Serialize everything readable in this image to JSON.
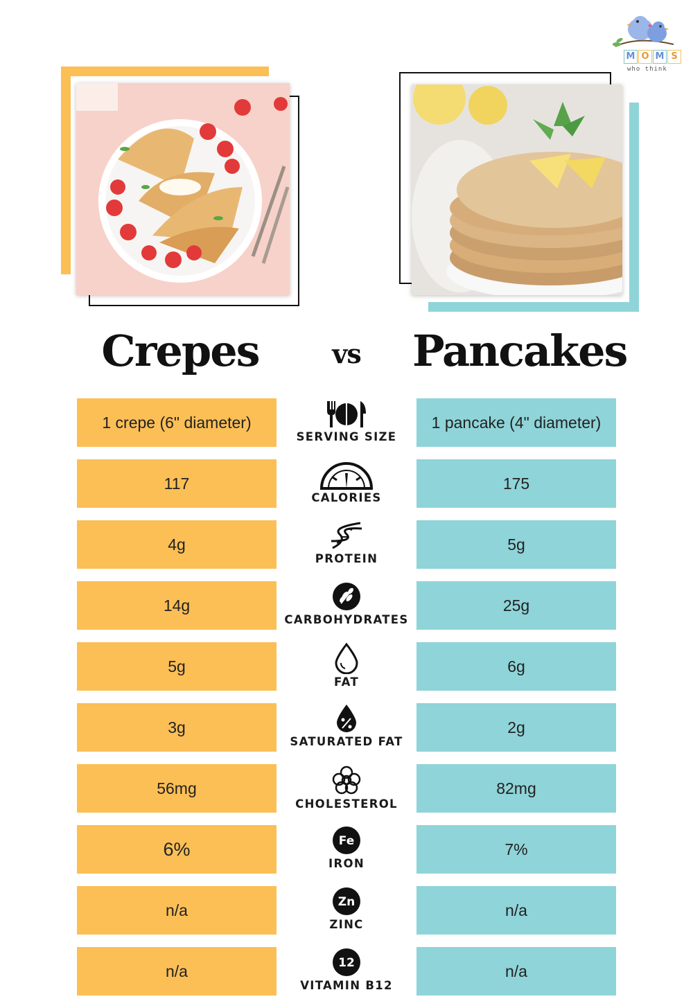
{
  "logo": {
    "letters": [
      "M",
      "O",
      "M",
      "S"
    ],
    "tagline": "who think"
  },
  "headings": {
    "left_title": "Crepes",
    "vs": "vs",
    "right_title": "Pancakes"
  },
  "colors": {
    "crepes_accent": "#fbbf56",
    "pancakes_accent": "#8fd4d9",
    "frame_line": "#111111"
  },
  "rows": [
    {
      "label": "SERVING SIZE",
      "icon": "utensils-plate-icon",
      "crepes": "1 crepe (6\" diameter)",
      "pancakes": "1 pancake (4\" diameter)"
    },
    {
      "label": "CALORIES",
      "icon": "gauge-icon",
      "crepes": "117",
      "pancakes": "175"
    },
    {
      "label": "PROTEIN",
      "icon": "dna-icon",
      "crepes": "4g",
      "pancakes": "5g"
    },
    {
      "label": "CARBOHYDRATES",
      "icon": "wheat-icon",
      "crepes": "14g",
      "pancakes": "25g"
    },
    {
      "label": "FAT",
      "icon": "droplet-icon",
      "crepes": "5g",
      "pancakes": "6g"
    },
    {
      "label": "SATURATED FAT",
      "icon": "percent-droplet-icon",
      "crepes": "3g",
      "pancakes": "2g"
    },
    {
      "label": "CHOLESTEROL",
      "icon": "molecule-icon",
      "crepes": "56mg",
      "pancakes": "82mg"
    },
    {
      "label": "IRON",
      "icon": "fe-badge-icon",
      "badge": "Fe",
      "crepes": "6%",
      "pancakes": "7%"
    },
    {
      "label": "ZINC",
      "icon": "zn-badge-icon",
      "badge": "Zn",
      "crepes": "n/a",
      "pancakes": "n/a"
    },
    {
      "label": "VITAMIN B12",
      "icon": "b12-badge-icon",
      "badge": "12",
      "crepes": "n/a",
      "pancakes": "n/a"
    }
  ]
}
